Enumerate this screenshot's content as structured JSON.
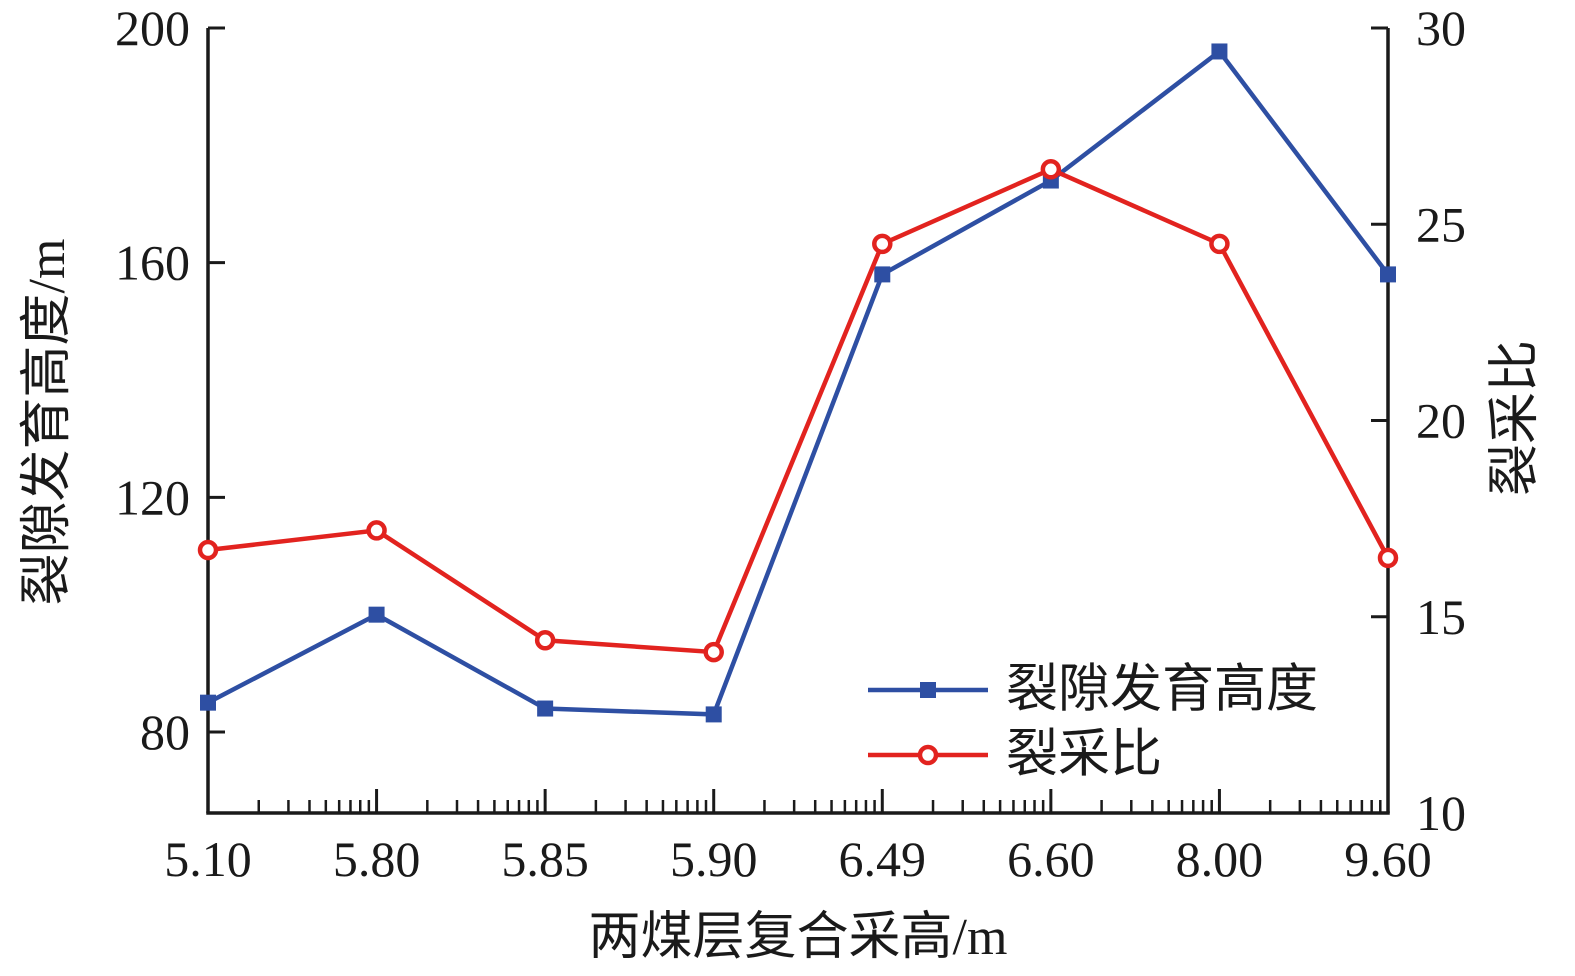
{
  "figure": {
    "background": "#ffffff",
    "text_color": "#1a1a1a"
  },
  "chart_data": {
    "type": "line",
    "categories": [
      "5.10",
      "5.80",
      "5.85",
      "5.90",
      "6.49",
      "6.60",
      "8.00",
      "9.60"
    ],
    "xlabel": "两煤层复合采高/m",
    "left_axis": {
      "label": "裂隙发育高度/m",
      "ticks": [
        80,
        120,
        160,
        200
      ],
      "tick_range": [
        80,
        200
      ]
    },
    "right_axis": {
      "label": "裂采比",
      "ticks": [
        10,
        15,
        20,
        25,
        30
      ],
      "range": [
        10,
        30
      ]
    },
    "series": [
      {
        "name": "裂隙发育高度",
        "axis": "left",
        "color": "#2e4fa3",
        "marker": "filled-square",
        "values": [
          85,
          100,
          84,
          83,
          158,
          174,
          196,
          158
        ]
      },
      {
        "name": "裂采比",
        "axis": "right",
        "color": "#e2231f",
        "marker": "open-circle",
        "values": [
          16.7,
          17.2,
          14.4,
          14.1,
          24.5,
          26.4,
          24.5,
          16.5
        ]
      }
    ],
    "grid": false,
    "legend_position": "inside-bottom-right",
    "x_minor_tick_pattern": "log-decade"
  },
  "legend": {
    "items": [
      {
        "label": "裂隙发育高度",
        "color": "#2e4fa3",
        "marker": "filled-square"
      },
      {
        "label": "裂采比",
        "color": "#e2231f",
        "marker": "open-circle"
      }
    ]
  }
}
